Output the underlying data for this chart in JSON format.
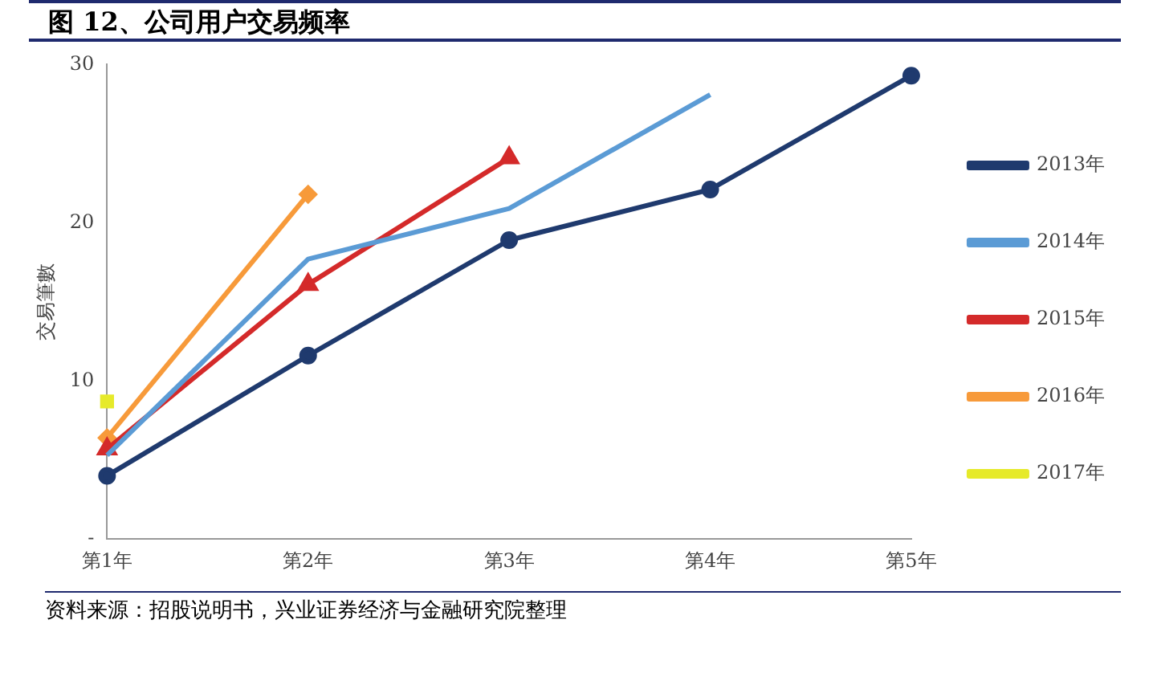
{
  "chart_data": {
    "type": "line",
    "title": "图 12、公司用户交易频率",
    "ylabel": "交易筆數",
    "categories": [
      "第1年",
      "第2年",
      "第3年",
      "第4年",
      "第5年"
    ],
    "series": [
      {
        "name": "2013年",
        "color": "#1f3a6e",
        "marker": "circle",
        "values": [
          4.0,
          11.6,
          18.9,
          22.1,
          29.3
        ]
      },
      {
        "name": "2014年",
        "color": "#5b9bd5",
        "marker": "none",
        "values": [
          5.3,
          17.7,
          20.9,
          28.1,
          null
        ]
      },
      {
        "name": "2015年",
        "color": "#d42a2a",
        "marker": "triangle",
        "values": [
          5.7,
          16.1,
          24.1,
          null,
          null
        ]
      },
      {
        "name": "2016年",
        "color": "#f79a3a",
        "marker": "diamond",
        "values": [
          6.4,
          21.8,
          null,
          null,
          null
        ]
      },
      {
        "name": "2017年",
        "color": "#e6ea2a",
        "marker": "square",
        "values": [
          8.7,
          null,
          null,
          null,
          null
        ]
      }
    ],
    "ylim": [
      0,
      30
    ],
    "yticks": [
      {
        "value": 0,
        "label": "-"
      },
      10,
      20,
      30
    ],
    "grid": false,
    "legend": "right",
    "annotations": [
      "资料来源：招股说明书，兴业证券经济与金融研究院整理"
    ]
  }
}
